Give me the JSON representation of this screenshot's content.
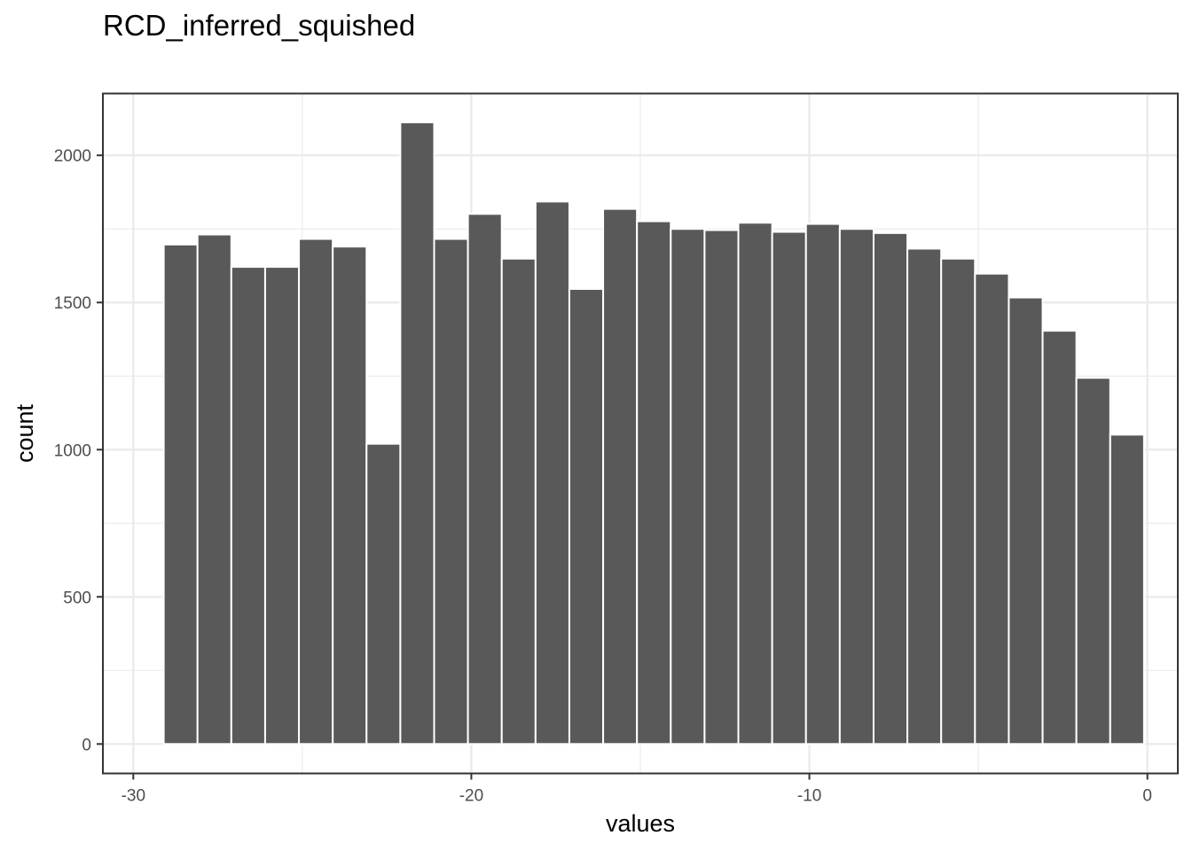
{
  "chart_data": {
    "type": "bar",
    "title": "RCD_inferred_squished",
    "xlabel": "values",
    "ylabel": "count",
    "xlim": [
      -30.9,
      0.9
    ],
    "ylim": [
      -100,
      2210
    ],
    "x_ticks": [
      -30,
      -20,
      -10,
      0
    ],
    "x_tick_labels": [
      "-30",
      "-20",
      "-10",
      "0"
    ],
    "y_ticks": [
      0,
      500,
      1000,
      1500,
      2000
    ],
    "y_tick_labels": [
      "0",
      "500",
      "1000",
      "1500",
      "2000"
    ],
    "grid": true,
    "bin_width": 1,
    "bins": [
      {
        "x": -28.6,
        "count": 1697
      },
      {
        "x": -27.6,
        "count": 1731
      },
      {
        "x": -26.6,
        "count": 1621
      },
      {
        "x": -25.6,
        "count": 1621
      },
      {
        "x": -24.6,
        "count": 1716
      },
      {
        "x": -23.6,
        "count": 1690
      },
      {
        "x": -22.6,
        "count": 1020
      },
      {
        "x": -21.6,
        "count": 2112
      },
      {
        "x": -20.6,
        "count": 1716
      },
      {
        "x": -19.6,
        "count": 1801
      },
      {
        "x": -18.6,
        "count": 1649
      },
      {
        "x": -17.6,
        "count": 1843
      },
      {
        "x": -16.6,
        "count": 1546
      },
      {
        "x": -15.6,
        "count": 1818
      },
      {
        "x": -14.6,
        "count": 1776
      },
      {
        "x": -13.6,
        "count": 1750
      },
      {
        "x": -12.6,
        "count": 1746
      },
      {
        "x": -11.6,
        "count": 1771
      },
      {
        "x": -10.6,
        "count": 1740
      },
      {
        "x": -9.6,
        "count": 1767
      },
      {
        "x": -8.6,
        "count": 1750
      },
      {
        "x": -7.6,
        "count": 1736
      },
      {
        "x": -6.6,
        "count": 1683
      },
      {
        "x": -5.6,
        "count": 1649
      },
      {
        "x": -4.6,
        "count": 1598
      },
      {
        "x": -3.6,
        "count": 1517
      },
      {
        "x": -2.6,
        "count": 1404
      },
      {
        "x": -1.6,
        "count": 1244
      },
      {
        "x": -0.6,
        "count": 1051
      }
    ],
    "colors": {
      "bar_fill": "#595959",
      "bar_stroke": "#ffffff",
      "panel_background": "#ffffff",
      "grid_major": "#ebebeb",
      "grid_minor": "#ebebeb",
      "panel_border": "#333333",
      "tick_text": "#4d4d4d"
    }
  }
}
